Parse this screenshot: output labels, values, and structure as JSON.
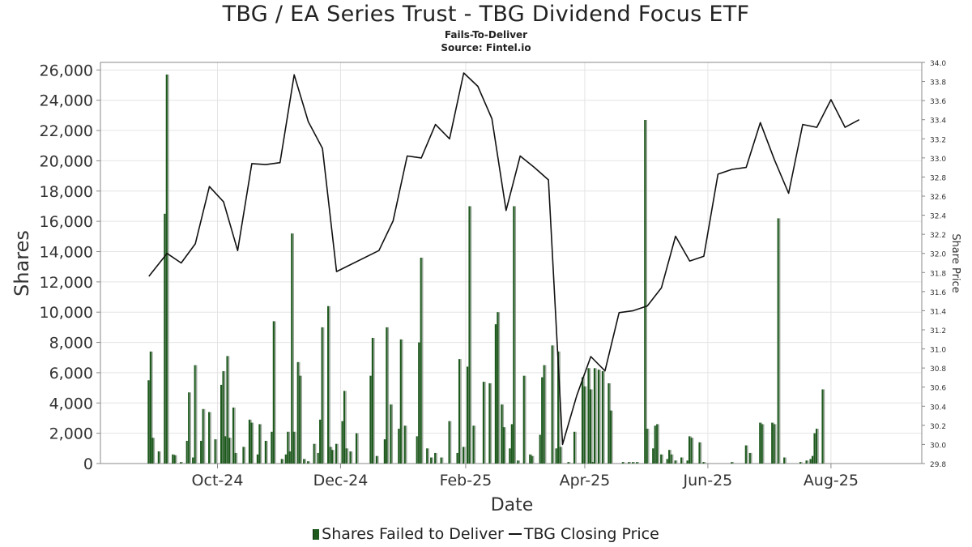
{
  "title": "TBG / EA Series Trust - TBG Dividend Focus ETF",
  "subtitle1": "Fails-To-Deliver",
  "subtitle2": "Source: Fintel.io",
  "chart_data": {
    "type": "bar",
    "xlabel": "Date",
    "ylabel": "Shares",
    "y2label": "Share Price",
    "ylim": [
      0,
      26500
    ],
    "y2lim": [
      29.8,
      34.0
    ],
    "yticks": [
      0,
      2000,
      4000,
      6000,
      8000,
      10000,
      12000,
      14000,
      16000,
      18000,
      20000,
      22000,
      24000,
      26000
    ],
    "yticks_text": [
      "0",
      "2,000",
      "4,000",
      "6,000",
      "8,000",
      "10,000",
      "12,000",
      "14,000",
      "16,000",
      "18,000",
      "20,000",
      "22,000",
      "24,000",
      "26,000"
    ],
    "y2ticks": [
      29.8,
      30.0,
      30.2,
      30.4,
      30.6,
      30.8,
      31.0,
      31.2,
      31.4,
      31.6,
      31.8,
      32.0,
      32.2,
      32.4,
      32.6,
      32.8,
      33.0,
      33.2,
      33.4,
      33.6,
      33.8,
      34.0
    ],
    "y2ticks_text": [
      "29.8",
      "30.0",
      "30.2",
      "30.4",
      "30.6",
      "30.8",
      "31.0",
      "31.2",
      "31.4",
      "31.6",
      "31.8",
      "32.0",
      "32.2",
      "32.4",
      "32.6",
      "32.8",
      "33.0",
      "33.2",
      "33.4",
      "33.6",
      "33.8",
      "34.0"
    ],
    "xlim": [
      "2024-08-04",
      "2025-09-15"
    ],
    "xticks": [
      "2024-10-01",
      "2024-12-01",
      "2025-02-01",
      "2025-04-01",
      "2025-06-01",
      "2025-08-01"
    ],
    "xticks_text": [
      "Oct-24",
      "Dec-24",
      "Feb-25",
      "Apr-25",
      "Jun-25",
      "Aug-25"
    ],
    "grid": true,
    "legend_position": "bottom-center",
    "series": [
      {
        "name": "Shares Failed to Deliver",
        "color": "#1e5a1e",
        "points": [
          [
            "2024-08-28",
            5500
          ],
          [
            "2024-08-29",
            7400
          ],
          [
            "2024-08-30",
            1700
          ],
          [
            "2024-09-02",
            800
          ],
          [
            "2024-09-05",
            16500
          ],
          [
            "2024-09-06",
            25700
          ],
          [
            "2024-09-09",
            600
          ],
          [
            "2024-09-10",
            550
          ],
          [
            "2024-09-13",
            100
          ],
          [
            "2024-09-16",
            1500
          ],
          [
            "2024-09-17",
            4700
          ],
          [
            "2024-09-19",
            400
          ],
          [
            "2024-09-20",
            6500
          ],
          [
            "2024-09-23",
            1500
          ],
          [
            "2024-09-24",
            3600
          ],
          [
            "2024-09-27",
            3400
          ],
          [
            "2024-09-30",
            1600
          ],
          [
            "2024-10-03",
            5200
          ],
          [
            "2024-10-04",
            6100
          ],
          [
            "2024-10-05",
            1800
          ],
          [
            "2024-10-06",
            7100
          ],
          [
            "2024-10-07",
            1700
          ],
          [
            "2024-10-09",
            3700
          ],
          [
            "2024-10-10",
            700
          ],
          [
            "2024-10-14",
            1100
          ],
          [
            "2024-10-17",
            2900
          ],
          [
            "2024-10-18",
            2700
          ],
          [
            "2024-10-21",
            600
          ],
          [
            "2024-10-22",
            2600
          ],
          [
            "2024-10-25",
            1500
          ],
          [
            "2024-10-28",
            2100
          ],
          [
            "2024-10-29",
            9400
          ],
          [
            "2024-11-02",
            300
          ],
          [
            "2024-11-04",
            600
          ],
          [
            "2024-11-05",
            2100
          ],
          [
            "2024-11-06",
            800
          ],
          [
            "2024-11-07",
            15200
          ],
          [
            "2024-11-08",
            2100
          ],
          [
            "2024-11-10",
            6700
          ],
          [
            "2024-11-11",
            5800
          ],
          [
            "2024-11-13",
            300
          ],
          [
            "2024-11-15",
            150
          ],
          [
            "2024-11-18",
            1300
          ],
          [
            "2024-11-20",
            700
          ],
          [
            "2024-11-21",
            2900
          ],
          [
            "2024-11-22",
            9000
          ],
          [
            "2024-11-25",
            10400
          ],
          [
            "2024-11-26",
            1100
          ],
          [
            "2024-11-27",
            900
          ],
          [
            "2024-11-29",
            1300
          ],
          [
            "2024-12-02",
            2800
          ],
          [
            "2024-12-03",
            4800
          ],
          [
            "2024-12-04",
            1000
          ],
          [
            "2024-12-06",
            800
          ],
          [
            "2024-12-09",
            2000
          ],
          [
            "2024-12-16",
            5800
          ],
          [
            "2024-12-17",
            8300
          ],
          [
            "2024-12-19",
            500
          ],
          [
            "2024-12-23",
            1600
          ],
          [
            "2024-12-24",
            9000
          ],
          [
            "2024-12-26",
            3900
          ],
          [
            "2024-12-30",
            2300
          ],
          [
            "2024-12-31",
            8200
          ],
          [
            "2025-01-02",
            2500
          ],
          [
            "2025-01-08",
            1800
          ],
          [
            "2025-01-09",
            8000
          ],
          [
            "2025-01-10",
            13600
          ],
          [
            "2025-01-13",
            1000
          ],
          [
            "2025-01-15",
            400
          ],
          [
            "2025-01-17",
            700
          ],
          [
            "2025-01-20",
            400
          ],
          [
            "2025-01-24",
            2800
          ],
          [
            "2025-01-28",
            700
          ],
          [
            "2025-01-29",
            6900
          ],
          [
            "2025-01-31",
            1100
          ],
          [
            "2025-02-02",
            6400
          ],
          [
            "2025-02-03",
            17000
          ],
          [
            "2025-02-05",
            2500
          ],
          [
            "2025-02-10",
            5400
          ],
          [
            "2025-02-13",
            5300
          ],
          [
            "2025-02-16",
            9200
          ],
          [
            "2025-02-17",
            10000
          ],
          [
            "2025-02-19",
            3900
          ],
          [
            "2025-02-20",
            2400
          ],
          [
            "2025-02-23",
            1000
          ],
          [
            "2025-02-24",
            2600
          ],
          [
            "2025-02-25",
            17000
          ],
          [
            "2025-02-27",
            200
          ],
          [
            "2025-03-02",
            5800
          ],
          [
            "2025-03-05",
            600
          ],
          [
            "2025-03-06",
            500
          ],
          [
            "2025-03-10",
            1900
          ],
          [
            "2025-03-11",
            5700
          ],
          [
            "2025-03-12",
            6500
          ],
          [
            "2025-03-16",
            7800
          ],
          [
            "2025-03-18",
            1000
          ],
          [
            "2025-03-19",
            7400
          ],
          [
            "2025-03-20",
            1100
          ],
          [
            "2025-03-24",
            100
          ],
          [
            "2025-03-27",
            2100
          ],
          [
            "2025-03-31",
            5700
          ],
          [
            "2025-04-01",
            5100
          ],
          [
            "2025-04-03",
            6300
          ],
          [
            "2025-04-04",
            4900
          ],
          [
            "2025-04-05",
            100
          ],
          [
            "2025-04-06",
            6300
          ],
          [
            "2025-04-08",
            6200
          ],
          [
            "2025-04-10",
            6100
          ],
          [
            "2025-04-13",
            5300
          ],
          [
            "2025-04-14",
            3500
          ],
          [
            "2025-04-20",
            100
          ],
          [
            "2025-04-23",
            100
          ],
          [
            "2025-04-25",
            100
          ],
          [
            "2025-04-27",
            100
          ],
          [
            "2025-05-01",
            22700
          ],
          [
            "2025-05-02",
            2300
          ],
          [
            "2025-05-05",
            1000
          ],
          [
            "2025-05-06",
            2500
          ],
          [
            "2025-05-07",
            2600
          ],
          [
            "2025-05-09",
            600
          ],
          [
            "2025-05-12",
            300
          ],
          [
            "2025-05-13",
            900
          ],
          [
            "2025-05-14",
            600
          ],
          [
            "2025-05-16",
            200
          ],
          [
            "2025-05-19",
            400
          ],
          [
            "2025-05-22",
            200
          ],
          [
            "2025-05-23",
            1800
          ],
          [
            "2025-05-24",
            1700
          ],
          [
            "2025-05-28",
            1400
          ],
          [
            "2025-05-30",
            100
          ],
          [
            "2025-06-13",
            100
          ],
          [
            "2025-06-20",
            1200
          ],
          [
            "2025-06-22",
            700
          ],
          [
            "2025-06-27",
            2700
          ],
          [
            "2025-06-28",
            2600
          ],
          [
            "2025-07-03",
            2700
          ],
          [
            "2025-07-04",
            2600
          ],
          [
            "2025-07-06",
            16200
          ],
          [
            "2025-07-09",
            400
          ],
          [
            "2025-07-17",
            100
          ],
          [
            "2025-07-20",
            200
          ],
          [
            "2025-07-22",
            300
          ],
          [
            "2025-07-23",
            500
          ],
          [
            "2025-07-24",
            2000
          ],
          [
            "2025-07-25",
            2300
          ],
          [
            "2025-07-28",
            4900
          ]
        ]
      },
      {
        "name": "TBG Closing Price",
        "color": "#111111",
        "points": [
          [
            "2024-08-28",
            31.76
          ],
          [
            "2024-09-06",
            32.0
          ],
          [
            "2024-09-13",
            31.9
          ],
          [
            "2024-09-20",
            32.1
          ],
          [
            "2024-09-27",
            32.7
          ],
          [
            "2024-10-04",
            32.54
          ],
          [
            "2024-10-11",
            32.03
          ],
          [
            "2024-10-18",
            32.94
          ],
          [
            "2024-10-25",
            32.93
          ],
          [
            "2024-11-01",
            32.95
          ],
          [
            "2024-11-08",
            33.87
          ],
          [
            "2024-11-15",
            33.38
          ],
          [
            "2024-11-22",
            33.1
          ],
          [
            "2024-11-29",
            31.81
          ],
          [
            "2024-12-20",
            32.03
          ],
          [
            "2024-12-27",
            32.34
          ],
          [
            "2025-01-03",
            33.02
          ],
          [
            "2025-01-10",
            33.0
          ],
          [
            "2025-01-17",
            33.35
          ],
          [
            "2025-01-24",
            33.2
          ],
          [
            "2025-01-31",
            33.89
          ],
          [
            "2025-02-07",
            33.75
          ],
          [
            "2025-02-14",
            33.41
          ],
          [
            "2025-02-21",
            32.45
          ],
          [
            "2025-02-28",
            33.02
          ],
          [
            "2025-03-07",
            32.9
          ],
          [
            "2025-03-14",
            32.77
          ],
          [
            "2025-03-21",
            30.0
          ],
          [
            "2025-03-28",
            30.51
          ],
          [
            "2025-04-04",
            30.92
          ],
          [
            "2025-04-11",
            30.77
          ],
          [
            "2025-04-18",
            31.38
          ],
          [
            "2025-04-25",
            31.4
          ],
          [
            "2025-05-02",
            31.45
          ],
          [
            "2025-05-09",
            31.64
          ],
          [
            "2025-05-16",
            32.18
          ],
          [
            "2025-05-23",
            31.92
          ],
          [
            "2025-05-30",
            31.97
          ],
          [
            "2025-06-06",
            32.83
          ],
          [
            "2025-06-13",
            32.88
          ],
          [
            "2025-06-20",
            32.9
          ],
          [
            "2025-06-27",
            33.37
          ],
          [
            "2025-07-04",
            32.98
          ],
          [
            "2025-07-11",
            32.63
          ],
          [
            "2025-07-18",
            33.35
          ],
          [
            "2025-07-25",
            33.32
          ],
          [
            "2025-08-01",
            33.61
          ],
          [
            "2025-08-08",
            33.32
          ],
          [
            "2025-08-15",
            33.4
          ]
        ]
      }
    ]
  },
  "legend": {
    "fails_label": "Shares Failed to Deliver",
    "price_label": "TBG Closing Price"
  }
}
